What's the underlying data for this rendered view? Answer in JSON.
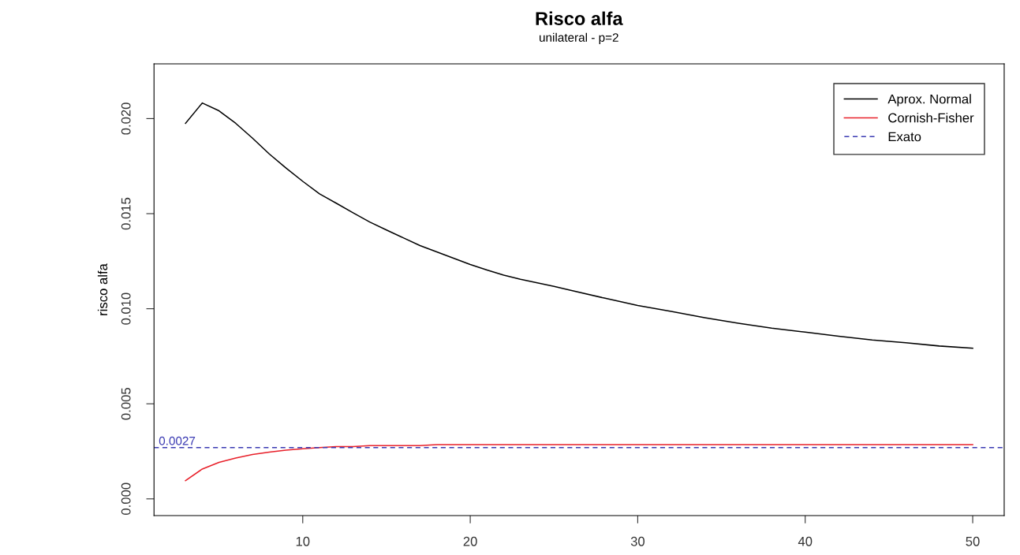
{
  "chart_data": {
    "type": "line",
    "title": "Risco alfa",
    "subtitle": "unilateral - p=2",
    "ylabel": "risco alfa",
    "series": [
      {
        "name": "Aprox. Normal",
        "color": "#000000",
        "line_style": "solid",
        "x": [
          3,
          4,
          5,
          6,
          7,
          8,
          9,
          10,
          11,
          12,
          13,
          14,
          15,
          16,
          17,
          18,
          19,
          20,
          21,
          22,
          23,
          24,
          25,
          26,
          28,
          30,
          32,
          34,
          36,
          38,
          40,
          42,
          44,
          46,
          48,
          50
        ],
        "values": [
          0.01975,
          0.02082,
          0.02041,
          0.01975,
          0.01897,
          0.01814,
          0.0174,
          0.0167,
          0.01604,
          0.01555,
          0.01505,
          0.01456,
          0.01414,
          0.01373,
          0.01332,
          0.01299,
          0.01266,
          0.01233,
          0.01204,
          0.01177,
          0.01155,
          0.01136,
          0.01118,
          0.01097,
          0.01056,
          0.01017,
          0.00986,
          0.00953,
          0.00924,
          0.00898,
          0.00877,
          0.00855,
          0.00836,
          0.00821,
          0.00804,
          0.00792
        ]
      },
      {
        "name": "Cornish-Fisher",
        "color": "#e8202a",
        "line_style": "solid",
        "x": [
          3,
          4,
          5,
          6,
          7,
          8,
          9,
          10,
          11,
          12,
          13,
          14,
          15,
          16,
          17,
          18,
          19,
          20,
          21,
          22,
          23,
          24,
          25,
          26,
          27,
          28,
          29,
          30,
          31,
          32,
          33,
          34,
          35,
          36,
          37,
          38,
          39,
          40,
          41,
          42,
          43,
          44,
          45,
          46,
          47,
          48,
          49,
          50
        ],
        "values": [
          0.00096,
          0.00157,
          0.00192,
          0.00215,
          0.00233,
          0.00246,
          0.00256,
          0.00263,
          0.0027,
          0.00275,
          0.00275,
          0.0028,
          0.0028,
          0.0028,
          0.0028,
          0.00285,
          0.00285,
          0.00285,
          0.00285,
          0.00285,
          0.00285,
          0.00285,
          0.00285,
          0.00285,
          0.00285,
          0.00285,
          0.00285,
          0.00285,
          0.00285,
          0.00285,
          0.00285,
          0.00285,
          0.00285,
          0.00285,
          0.00285,
          0.00285,
          0.00285,
          0.00285,
          0.00285,
          0.00285,
          0.00285,
          0.00285,
          0.00285,
          0.00285,
          0.00285,
          0.00285,
          0.00285,
          0.00285
        ]
      }
    ],
    "ref_lines": [
      {
        "axis": "y",
        "value": 0.0027,
        "label": "Exato",
        "color": "#3b3bb3",
        "line_style": "dashed"
      }
    ],
    "annotations": [
      {
        "text": "0.0027",
        "x": 1.4,
        "y": 0.0027
      }
    ],
    "xlim": [
      1.12,
      51.88
    ],
    "xticks": [
      10,
      20,
      30,
      40,
      50
    ],
    "ylim": [
      -0.00088,
      0.02288
    ],
    "yticks": [
      {
        "value": 0,
        "label": "0.000"
      },
      {
        "value": 0.005,
        "label": "0.005"
      },
      {
        "value": 0.01,
        "label": "0.010"
      },
      {
        "value": 0.015,
        "label": "0.015"
      },
      {
        "value": 0.02,
        "label": "0.020"
      }
    ],
    "legend": "top right",
    "grid": false
  }
}
